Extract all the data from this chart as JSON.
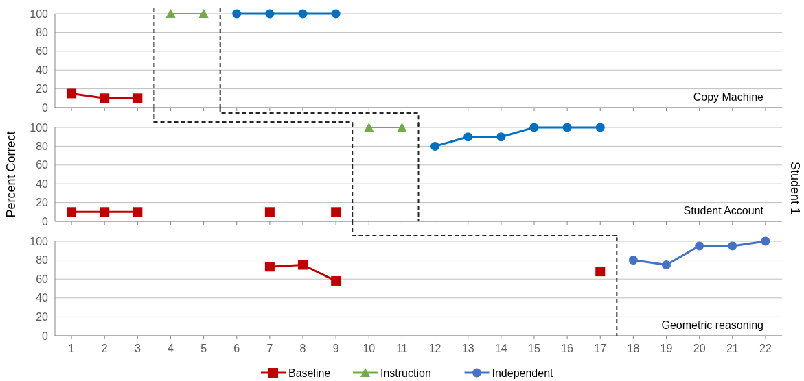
{
  "chart_data": [
    {
      "type": "line",
      "xlim": [
        0.5,
        22.5
      ],
      "xticks": [
        1,
        2,
        3,
        4,
        5,
        6,
        7,
        8,
        9,
        10,
        11,
        12,
        13,
        14,
        15,
        16,
        17,
        18,
        19,
        20,
        21,
        22
      ],
      "ylim": [
        0,
        100
      ],
      "yticks": [
        0,
        20,
        40,
        60,
        80,
        100
      ],
      "grid": "y",
      "tick_labels": "y",
      "annotations": [
        "Copy Machine"
      ],
      "ref_lines": [
        {
          "axis": "x",
          "value": 3.5,
          "line_style": "dashed",
          "color": "#262626"
        },
        {
          "axis": "x",
          "value": 5.5,
          "line_style": "dashed",
          "color": "#262626"
        }
      ],
      "series": [
        {
          "color": "#c00000",
          "marker": "square",
          "x": [
            1,
            2,
            3
          ],
          "values": [
            15,
            10,
            10
          ]
        },
        {
          "color": "#70ad47",
          "marker": "triangle",
          "x": [
            4,
            5
          ],
          "values": [
            100,
            100
          ]
        },
        {
          "color": "#0070c0",
          "marker": "circle",
          "x": [
            6,
            7,
            8,
            9
          ],
          "values": [
            100,
            100,
            100,
            100
          ]
        }
      ]
    },
    {
      "type": "line",
      "xlim": [
        0.5,
        22.5
      ],
      "xticks": [
        1,
        2,
        3,
        4,
        5,
        6,
        7,
        8,
        9,
        10,
        11,
        12,
        13,
        14,
        15,
        16,
        17,
        18,
        19,
        20,
        21,
        22
      ],
      "ylim": [
        0,
        100
      ],
      "yticks": [
        0,
        20,
        40,
        60,
        80,
        100
      ],
      "grid": "y",
      "tick_labels": "y",
      "ylabel": "Percent Correct",
      "y2label": "Student 1",
      "annotations": [
        "Student Account"
      ],
      "ref_lines": [
        {
          "axis": "x",
          "value": 9.5,
          "line_style": "dashed",
          "color": "#262626"
        },
        {
          "axis": "x",
          "value": 11.5,
          "line_style": "dashed",
          "color": "#262626"
        }
      ],
      "series": [
        {
          "color": "#c00000",
          "marker": "square",
          "x": [
            1,
            2,
            3
          ],
          "values": [
            10,
            10,
            10
          ]
        },
        {
          "color": "#c00000",
          "marker": "square",
          "x": [
            7
          ],
          "values": [
            10
          ]
        },
        {
          "color": "#c00000",
          "marker": "square",
          "x": [
            9
          ],
          "values": [
            10
          ]
        },
        {
          "color": "#70ad47",
          "marker": "triangle",
          "x": [
            10,
            11
          ],
          "values": [
            100,
            100
          ]
        },
        {
          "color": "#0070c0",
          "marker": "circle",
          "x": [
            12,
            13,
            14,
            15,
            16,
            17
          ],
          "values": [
            80,
            90,
            90,
            100,
            100,
            100
          ]
        }
      ]
    },
    {
      "type": "line",
      "xlim": [
        0.5,
        22.5
      ],
      "xticks": [
        1,
        2,
        3,
        4,
        5,
        6,
        7,
        8,
        9,
        10,
        11,
        12,
        13,
        14,
        15,
        16,
        17,
        18,
        19,
        20,
        21,
        22
      ],
      "ylim": [
        0,
        100
      ],
      "yticks": [
        0,
        20,
        40,
        60,
        80,
        100
      ],
      "grid": "y",
      "legend": "bottom",
      "annotations": [
        "Geometric reasoning"
      ],
      "ref_lines": [
        {
          "axis": "x",
          "value": 17.5,
          "line_style": "dashed",
          "color": "#262626"
        }
      ],
      "series": [
        {
          "name": "Baseline",
          "color": "#c00000",
          "marker": "square",
          "x": [
            7,
            8,
            9
          ],
          "values": [
            73,
            75,
            58
          ]
        },
        {
          "color": "#c00000",
          "marker": "square",
          "x": [
            17
          ],
          "values": [
            68
          ]
        },
        {
          "name": "Instruction",
          "color": "#70ad47",
          "marker": "triangle"
        },
        {
          "name": "Independent",
          "color": "#4472c4",
          "marker": "circle",
          "x": [
            18,
            19,
            20,
            21,
            22
          ],
          "values": [
            80,
            75,
            95,
            95,
            100
          ]
        }
      ]
    }
  ]
}
